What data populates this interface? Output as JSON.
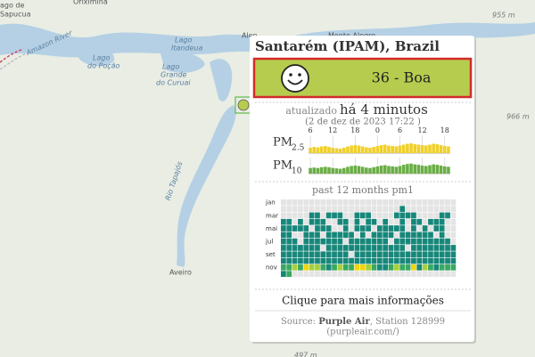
{
  "map": {
    "labels": {
      "lago_sapucua_1": "ago de",
      "lago_sapucua_2": "Sapucua",
      "oriximina": "Oriximina",
      "amazon_river": "Amazon River",
      "lago_pocao_1": "Lago",
      "lago_pocao_2": "do Poção",
      "lago_itandeua_1": "Lago",
      "lago_itandeua_2": "Itandeua",
      "lago_curuai_1": "Lago",
      "lago_curuai_2": "Grande",
      "lago_curuai_3": "do Curuai",
      "rio_tapajos": "Rio Tapajós",
      "aveiro": "Aveiro",
      "alenquer": "Alen",
      "monte_alegre": "Monte Alegre",
      "elev_955": "955 m",
      "elev_966": "966 m",
      "elev_497": "497 m"
    }
  },
  "popup": {
    "title": "Santarém (IPAM), Brazil",
    "aqi_text": "36 - Boa",
    "aqi_color": "#b6cc4e",
    "updated_label": "atualizado",
    "updated_ago": "há 4 minutos",
    "timestamp": "(2 de dez de 2023 17:22 )",
    "pm25_label": "PM",
    "pm25_sub": "2.5",
    "pm10_label": "PM",
    "pm10_sub": "10",
    "hour_xlim": [
      5.5,
      43.5
    ],
    "hour_ticks": [
      6,
      12,
      18,
      {
        "value": 24,
        "label": "0"
      },
      {
        "value": 30,
        "label": "6"
      },
      {
        "value": 36,
        "label": "12"
      },
      {
        "value": 42,
        "label": "18"
      }
    ],
    "bar_ylim": [
      0,
      40
    ],
    "pm25": {
      "color": "#f0d02a",
      "values": [
        12,
        14,
        13,
        15,
        16,
        14,
        12,
        11,
        10,
        12,
        15,
        17,
        18,
        17,
        15,
        13,
        12,
        14,
        16,
        18,
        19,
        17,
        16,
        15,
        17,
        19,
        21,
        22,
        20,
        19,
        18,
        17,
        19,
        21,
        20,
        18,
        16,
        15
      ]
    },
    "pm10": {
      "color": "#6aae45",
      "values": [
        14,
        15,
        14,
        16,
        17,
        16,
        14,
        13,
        12,
        14,
        17,
        19,
        20,
        19,
        17,
        15,
        14,
        16,
        18,
        20,
        21,
        19,
        18,
        17,
        19,
        22,
        24,
        25,
        23,
        22,
        20,
        19,
        21,
        23,
        22,
        20,
        18,
        17
      ]
    },
    "heatmap": {
      "title": "past 12 months pm1",
      "month_labels": [
        "jan",
        null,
        "mar",
        null,
        "mai",
        null,
        "jul",
        null,
        "set",
        null,
        "nov",
        null
      ],
      "colors": [
        "#e4e4e4",
        "#17877a",
        "#3aa860",
        "#a6cf3a",
        "#f2d40c"
      ],
      "rows": [
        [
          0,
          0,
          0,
          0,
          0,
          0,
          0,
          0,
          0,
          0,
          0,
          0,
          0,
          0,
          0,
          0,
          0,
          0,
          0,
          0,
          0,
          0,
          0,
          0,
          0,
          0,
          0,
          0,
          0,
          0,
          0
        ],
        [
          0,
          0,
          0,
          0,
          0,
          0,
          0,
          0,
          0,
          0,
          0,
          0,
          0,
          0,
          0,
          0,
          0,
          0,
          0,
          0,
          0,
          1,
          0,
          0,
          0,
          0,
          0,
          0,
          0,
          0,
          0
        ],
        [
          0,
          0,
          0,
          0,
          0,
          1,
          1,
          0,
          1,
          1,
          1,
          0,
          0,
          1,
          1,
          1,
          0,
          0,
          0,
          0,
          1,
          1,
          1,
          1,
          0,
          0,
          0,
          0,
          1,
          1,
          0
        ],
        [
          1,
          1,
          0,
          1,
          0,
          1,
          1,
          1,
          0,
          0,
          1,
          1,
          0,
          1,
          0,
          1,
          1,
          0,
          1,
          0,
          0,
          1,
          0,
          1,
          1,
          0,
          1,
          1,
          1,
          0,
          0
        ],
        [
          1,
          1,
          1,
          1,
          1,
          0,
          1,
          1,
          1,
          0,
          0,
          1,
          0,
          1,
          1,
          1,
          0,
          1,
          1,
          1,
          1,
          1,
          0,
          1,
          0,
          1,
          0,
          1,
          1,
          0,
          0
        ],
        [
          1,
          1,
          0,
          0,
          1,
          1,
          1,
          0,
          1,
          1,
          1,
          1,
          1,
          0,
          1,
          0,
          1,
          1,
          1,
          1,
          0,
          1,
          1,
          1,
          1,
          1,
          1,
          0,
          1,
          0,
          0
        ],
        [
          1,
          1,
          1,
          0,
          1,
          1,
          1,
          1,
          1,
          1,
          1,
          0,
          1,
          1,
          1,
          1,
          1,
          1,
          1,
          0,
          1,
          1,
          1,
          1,
          1,
          1,
          1,
          1,
          1,
          1,
          0
        ],
        [
          1,
          1,
          1,
          1,
          1,
          1,
          1,
          0,
          1,
          1,
          1,
          1,
          1,
          1,
          1,
          1,
          1,
          1,
          1,
          1,
          1,
          1,
          0,
          1,
          1,
          1,
          1,
          1,
          1,
          1,
          1
        ],
        [
          1,
          1,
          1,
          1,
          1,
          1,
          1,
          1,
          1,
          1,
          1,
          1,
          0,
          1,
          1,
          1,
          1,
          1,
          1,
          1,
          1,
          1,
          1,
          1,
          1,
          1,
          1,
          1,
          1,
          1,
          1
        ],
        [
          1,
          1,
          1,
          1,
          1,
          1,
          1,
          1,
          1,
          1,
          1,
          1,
          1,
          1,
          1,
          1,
          1,
          1,
          1,
          1,
          1,
          1,
          1,
          1,
          1,
          1,
          1,
          1,
          1,
          1,
          1
        ],
        [
          2,
          2,
          3,
          2,
          4,
          3,
          3,
          2,
          1,
          2,
          3,
          2,
          2,
          4,
          4,
          3,
          2,
          1,
          1,
          2,
          3,
          2,
          2,
          4,
          1,
          3,
          2,
          1,
          2,
          2,
          2
        ],
        [
          1,
          2,
          0,
          0,
          0,
          0,
          0,
          0,
          0,
          0,
          0,
          0,
          0,
          0,
          0,
          0,
          0,
          0,
          0,
          0,
          0,
          0,
          0,
          0,
          0,
          0,
          0,
          0,
          0,
          0,
          0
        ]
      ]
    },
    "click_text": "Clique para mais informações",
    "source_label": "Source:",
    "source_name": "Purple Air",
    "source_station": ", Station 128999",
    "source_url": "(purpleair.com/)"
  }
}
